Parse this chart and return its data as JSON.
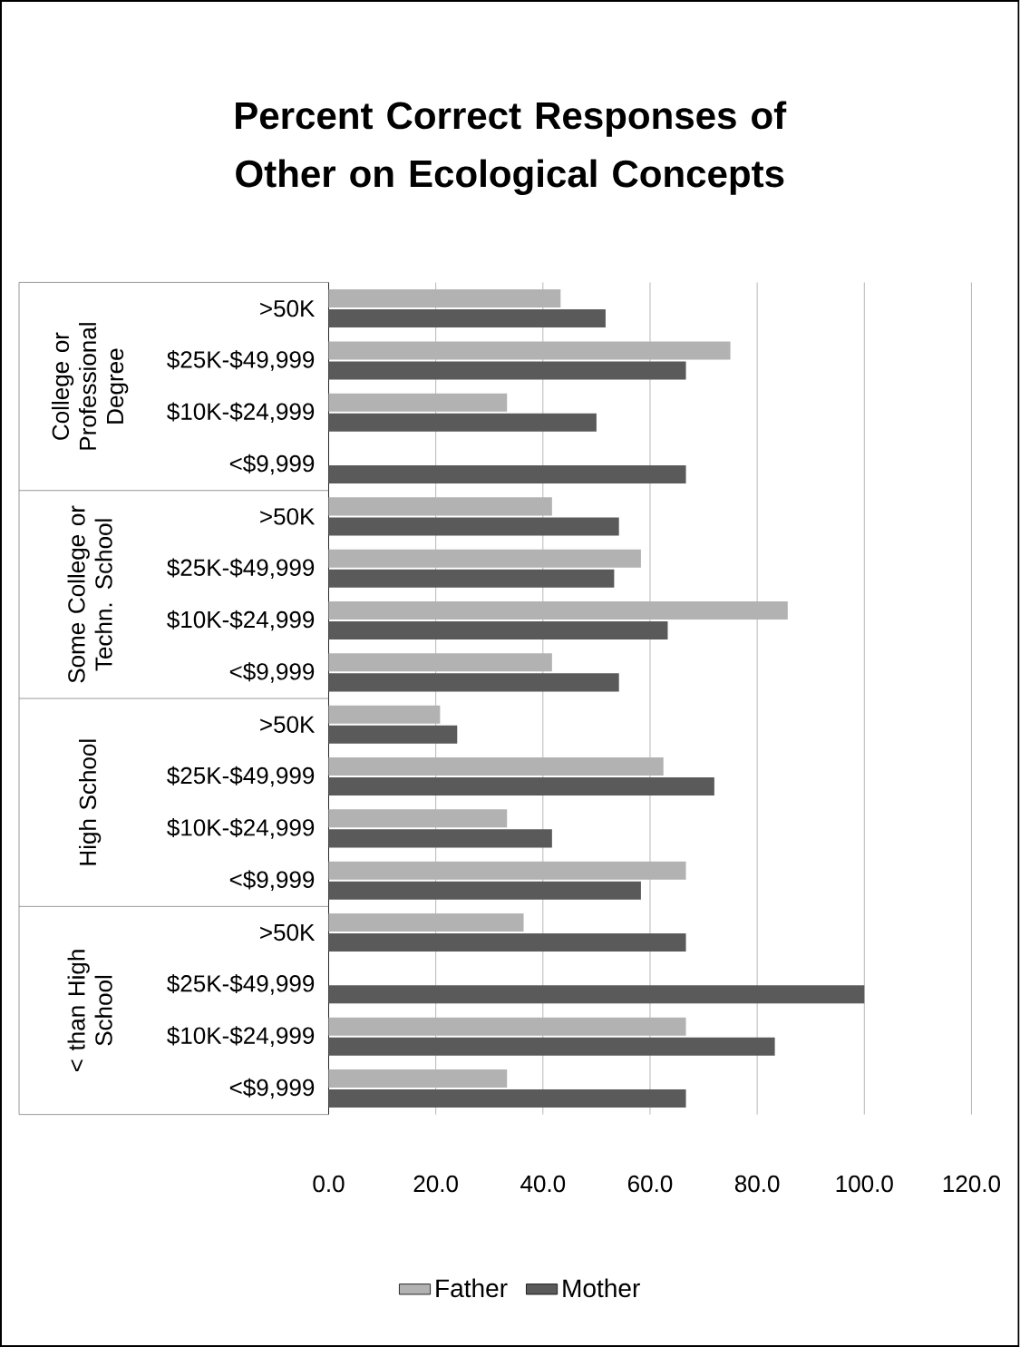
{
  "chart_data": {
    "type": "bar",
    "orientation": "horizontal",
    "title": "Percent Correct Responses of Other on Ecological Concepts",
    "categories": [
      ">50K",
      "$25K-$49,999",
      "$10K-$24,999",
      "<$9,999",
      ">50K",
      "$25K-$49,999",
      "$10K-$24,999",
      "<$9,999",
      ">50K",
      "$25K-$49,999",
      "$10K-$24,999",
      "<$9,999",
      ">50K",
      "$25K-$49,999",
      "$10K-$24,999",
      "<$9,999"
    ],
    "series": [
      {
        "name": "Father",
        "color": "#b2b2b2",
        "values": [
          43.3,
          75,
          33.3,
          null,
          41.7,
          58.3,
          85.7,
          41.7,
          20.8,
          62.5,
          33.3,
          66.7,
          36.4,
          null,
          66.7,
          33.3
        ]
      },
      {
        "name": "Mother",
        "color": "#5a5a5a",
        "values": [
          51.7,
          66.7,
          50,
          66.7,
          54.2,
          53.3,
          63.3,
          54.2,
          24,
          72,
          41.7,
          58.3,
          66.7,
          100,
          83.3,
          66.7
        ]
      }
    ],
    "xlim": [
      0,
      120
    ],
    "xticks": [
      {
        "value": 0,
        "label": "0.0"
      },
      {
        "value": 20,
        "label": "20.0"
      },
      {
        "value": 40,
        "label": "40.0"
      },
      {
        "value": 60,
        "label": "60.0"
      },
      {
        "value": 80,
        "label": "80.0"
      },
      {
        "value": 100,
        "label": "100.0"
      },
      {
        "value": 120,
        "label": "120.0"
      }
    ],
    "grid": "x",
    "legend": "bottom",
    "annotations": [
      "College or Professional Degree",
      "Some College or Techn. School",
      "High School",
      "< than High School"
    ]
  }
}
